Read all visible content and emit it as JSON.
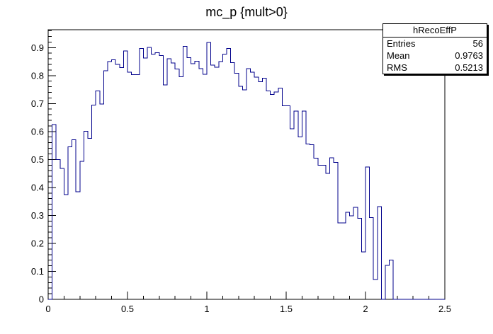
{
  "title": "mc_p {mult>0}",
  "stats": {
    "name": "hRecoEffP",
    "rows": [
      {
        "label": "Entries",
        "value": "56"
      },
      {
        "label": "Mean",
        "value": "0.9763"
      },
      {
        "label": "RMS",
        "value": "0.5213"
      }
    ]
  },
  "axes": {
    "x_tick_labels": [
      "0",
      "0.5",
      "1",
      "1.5",
      "2",
      "2.5"
    ],
    "y_tick_labels": [
      "0",
      "0.1",
      "0.2",
      "0.3",
      "0.4",
      "0.5",
      "0.6",
      "0.7",
      "0.8",
      "0.9"
    ]
  },
  "chart_data": {
    "type": "histogram-step",
    "title": "mc_p {mult>0}",
    "xlim": [
      0,
      2.5
    ],
    "ylim": [
      0,
      0.9639
    ],
    "bin_width": 0.025,
    "x_major_tick_step": 0.5,
    "x_minor_tick_step": 0.1,
    "y_major_tick_step": 0.1,
    "y_minor_tick_step": 0.02,
    "grid": false,
    "line_color": "#00008b",
    "frame_color": "#000000",
    "values": [
      0.0,
      0.625,
      0.5,
      0.468,
      0.375,
      0.545,
      0.57,
      0.385,
      0.493,
      0.601,
      0.576,
      0.695,
      0.745,
      0.698,
      0.817,
      0.85,
      0.856,
      0.84,
      0.829,
      0.888,
      0.812,
      0.803,
      0.803,
      0.897,
      0.863,
      0.901,
      0.876,
      0.882,
      0.871,
      0.766,
      0.86,
      0.845,
      0.823,
      0.796,
      0.904,
      0.864,
      0.843,
      0.851,
      0.825,
      0.804,
      0.918,
      0.838,
      0.83,
      0.85,
      0.876,
      0.897,
      0.846,
      0.808,
      0.762,
      0.749,
      0.825,
      0.812,
      0.795,
      0.778,
      0.79,
      0.745,
      0.732,
      0.741,
      0.755,
      0.692,
      0.692,
      0.61,
      0.673,
      0.581,
      0.673,
      0.555,
      0.553,
      0.505,
      0.479,
      0.479,
      0.45,
      0.506,
      0.49,
      0.273,
      0.273,
      0.311,
      0.298,
      0.329,
      0.29,
      0.169,
      0.473,
      0.292,
      0.071,
      0.332,
      0.0,
      0.121,
      0.141,
      0.0,
      0.0,
      0.0,
      0.0,
      0.0,
      0.0,
      0.0,
      0.0,
      0.0,
      0.0,
      0.0,
      0.0,
      0.0
    ]
  }
}
